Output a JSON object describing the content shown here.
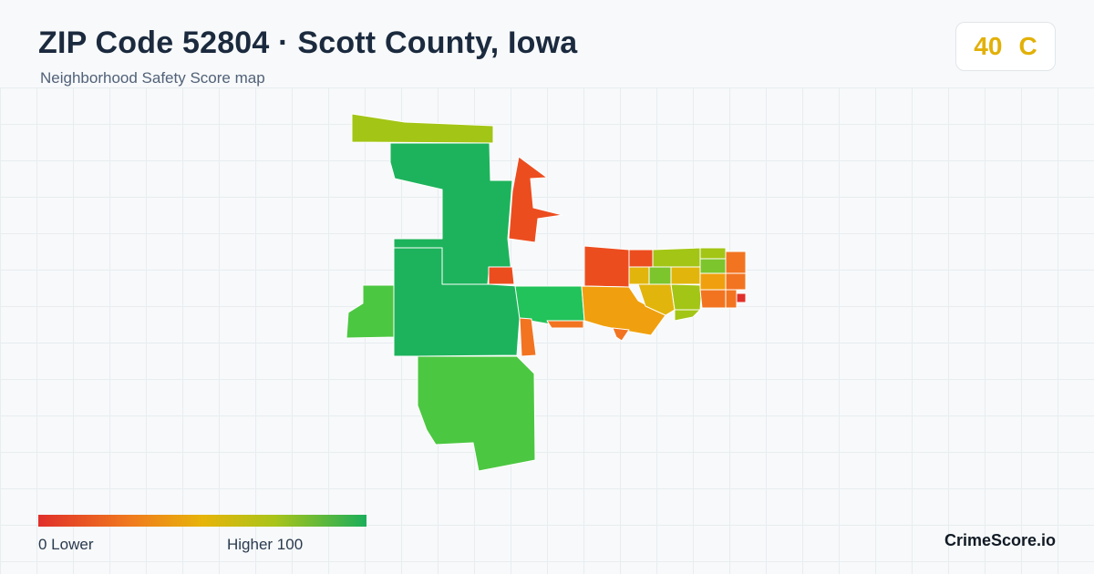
{
  "header": {
    "title": "ZIP Code 52804 · Scott County, Iowa",
    "subtitle": "Neighborhood Safety Score map"
  },
  "score_badge": {
    "score": "40",
    "grade": "C",
    "color": "#e2b007"
  },
  "legend": {
    "min_label": "0  Lower",
    "max_label": "Higher  100",
    "color_low": "#e0302a",
    "color_mid": "#e7b40a",
    "color_high": "#1bae5a"
  },
  "brand": {
    "name": "CrimeScore.io"
  },
  "map": {
    "region_colors": {
      "high": "#1db35c",
      "green": "#4cc742",
      "yellow_green": "#a3c515",
      "yellow": "#e2b50c",
      "amber": "#f0a00e",
      "orange": "#f27421",
      "red_orange": "#ec4d1f",
      "red": "#e0302a"
    }
  }
}
